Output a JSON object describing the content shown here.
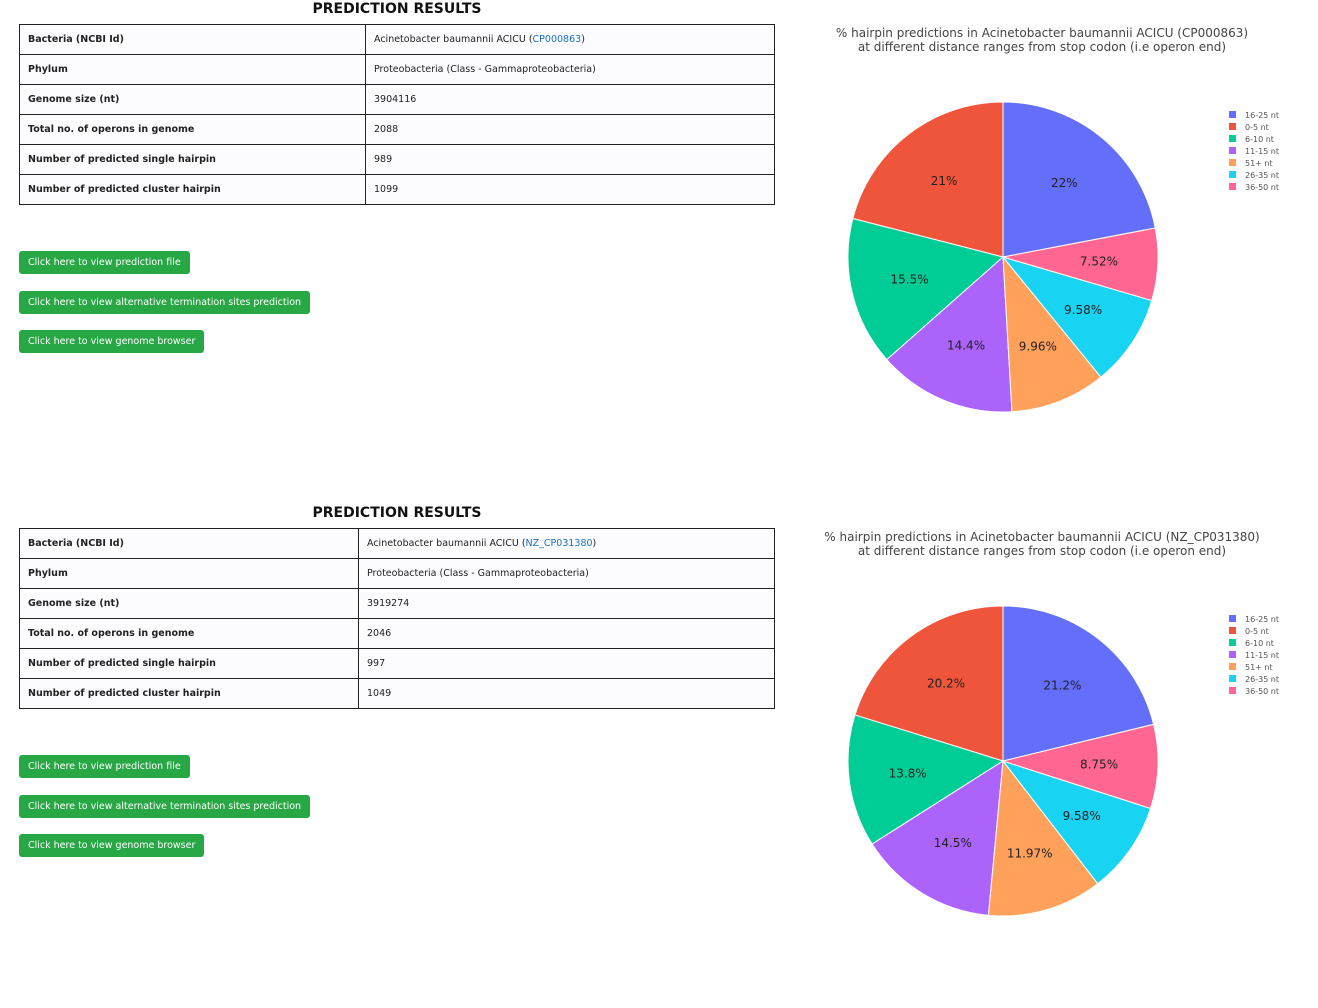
{
  "sections": [
    {
      "title": "PREDICTION RESULTS",
      "table": {
        "rows": [
          [
            {
              "text": "Bacteria (NCBI Id)"
            },
            {
              "text": "Acinetobacter baumannii ACICU (",
              "link": "CP000863",
              "suffix": ")"
            }
          ],
          [
            {
              "text": "Phylum"
            },
            {
              "text": "Proteobacteria (Class - Gammaproteobacteria)"
            }
          ],
          [
            {
              "text": "Genome size (nt)"
            },
            {
              "text": "3904116"
            }
          ],
          [
            {
              "text": "Total no. of operons in genome"
            },
            {
              "text": "2088"
            }
          ],
          [
            {
              "text": "Number of predicted single hairpin"
            },
            {
              "text": "989"
            }
          ],
          [
            {
              "text": "Number of predicted cluster hairpin"
            },
            {
              "text": "1099"
            }
          ]
        ]
      },
      "buttons": [
        "Click here to view prediction file",
        "Click here to view alternative termination sites prediction",
        "Click here to view genome browser"
      ]
    },
    {
      "title": "PREDICTION RESULTS",
      "table": {
        "rows": [
          [
            {
              "text": "Bacteria (NCBI Id)"
            },
            {
              "text": "Acinetobacter baumannii ACICU (",
              "link": "NZ_CP031380",
              "suffix": ")"
            }
          ],
          [
            {
              "text": "Phylum"
            },
            {
              "text": "Proteobacteria (Class - Gammaproteobacteria)"
            }
          ],
          [
            {
              "text": "Genome size (nt)"
            },
            {
              "text": "3919274"
            }
          ],
          [
            {
              "text": "Total no. of operons in genome"
            },
            {
              "text": "2046"
            }
          ],
          [
            {
              "text": "Number of predicted single hairpin"
            },
            {
              "text": "997"
            }
          ],
          [
            {
              "text": "Number of predicted cluster hairpin"
            },
            {
              "text": "1049"
            }
          ]
        ]
      },
      "buttons": [
        "Click here to view prediction file",
        "Click here to view alternative termination sites prediction",
        "Click here to view genome browser"
      ]
    }
  ],
  "chart_data": [
    {
      "type": "pie",
      "title": [
        "% hairpin predictions in Acinetobacter baumannii ACICU (CP000863)",
        "at different distance ranges from stop codon (i.e operon end)"
      ],
      "categories": [
        "16-25 nt",
        "0-5 nt",
        "6-10 nt",
        "11-15 nt",
        "51+ nt",
        "26-35 nt",
        "36-50 nt"
      ],
      "values": [
        22,
        21,
        15.5,
        14.4,
        9.96,
        9.58,
        7.52
      ],
      "value_labels": [
        "22%",
        "21%",
        "15.5%",
        "14.4%",
        "9.96%",
        "9.58%",
        "7.52%"
      ],
      "colors": [
        "#636efa",
        "#ef553b",
        "#00cc96",
        "#ab63fa",
        "#ffa15a",
        "#19d3f3",
        "#ff6692"
      ],
      "legend": "top-right"
    },
    {
      "type": "pie",
      "title": [
        "% hairpin predictions in Acinetobacter baumannii ACICU (NZ_CP031380)",
        "at different distance ranges from stop codon (i.e operon end)"
      ],
      "categories": [
        "16-25 nt",
        "0-5 nt",
        "6-10 nt",
        "11-15 nt",
        "51+ nt",
        "26-35 nt",
        "36-50 nt"
      ],
      "values": [
        21.2,
        20.2,
        13.8,
        14.5,
        11.97,
        9.58,
        8.75
      ],
      "value_labels": [
        "21.2%",
        "20.2%",
        "13.8%",
        "14.5%",
        "11.97%",
        "9.58%",
        "8.75%"
      ],
      "colors": [
        "#636efa",
        "#ef553b",
        "#00cc96",
        "#ab63fa",
        "#ffa15a",
        "#19d3f3",
        "#ff6692"
      ],
      "legend": "top-right"
    }
  ]
}
